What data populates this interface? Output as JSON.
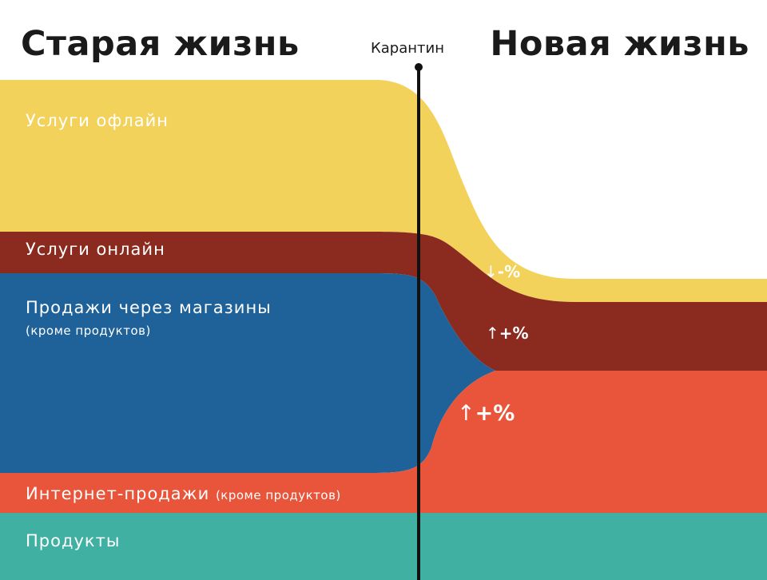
{
  "header": {
    "left_title": "Старая жизнь",
    "divider_label": "Карантин",
    "right_title": "Новая жизнь"
  },
  "bands": {
    "services_offline": {
      "label": "Услуги офлайн",
      "color": "#f2d25b"
    },
    "services_online": {
      "label": "Услуги онлайн",
      "color": "#8b2a1f"
    },
    "store_sales": {
      "label": "Продажи через магазины",
      "note": "(кроме продуктов)",
      "color": "#1f6199"
    },
    "internet_sales": {
      "label": "Интернет-продажи",
      "note": "(кроме продуктов)",
      "color": "#e8553b"
    },
    "groceries": {
      "label": "Продукты",
      "color": "#3fb0a2"
    }
  },
  "changes": {
    "services_offline": {
      "arrow": "↓",
      "text": "-%"
    },
    "services_online": {
      "arrow": "↑",
      "text": "+%"
    },
    "internet_sales": {
      "arrow": "↑",
      "text": "+%"
    }
  },
  "divider_color": "#111111"
}
